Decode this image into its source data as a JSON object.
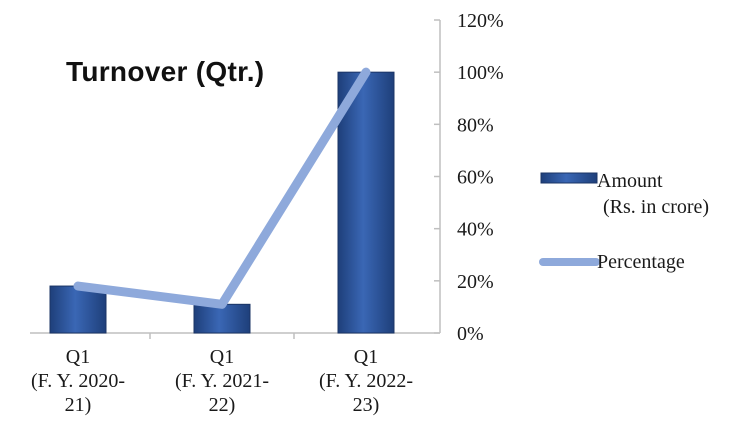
{
  "chart_data": {
    "type": "bar",
    "title": "Turnover (Qtr.)",
    "categories": [
      [
        "Q1",
        "(F. Y. 2020-",
        "21)"
      ],
      [
        "Q1",
        "(F. Y. 2021-",
        "22)"
      ],
      [
        "Q1",
        "(F. Y. 2022-",
        "23)"
      ]
    ],
    "series": [
      {
        "name": "Amount (Rs. in crore)",
        "legend_lines": [
          "Amount",
          "(Rs. in crore)"
        ],
        "type": "bar",
        "values": [
          18,
          11,
          100
        ],
        "color": "#2F5597"
      },
      {
        "name": "Percentage",
        "legend_lines": [
          "Percentage"
        ],
        "type": "line",
        "values": [
          18,
          11,
          100
        ],
        "color": "#8EA9DB"
      }
    ],
    "y_ticks": [
      "0%",
      "20%",
      "40%",
      "60%",
      "80%",
      "100%",
      "120%"
    ],
    "ylim": [
      0,
      120
    ],
    "y_axis_position": "right",
    "legend_position": "right",
    "grid": false
  }
}
